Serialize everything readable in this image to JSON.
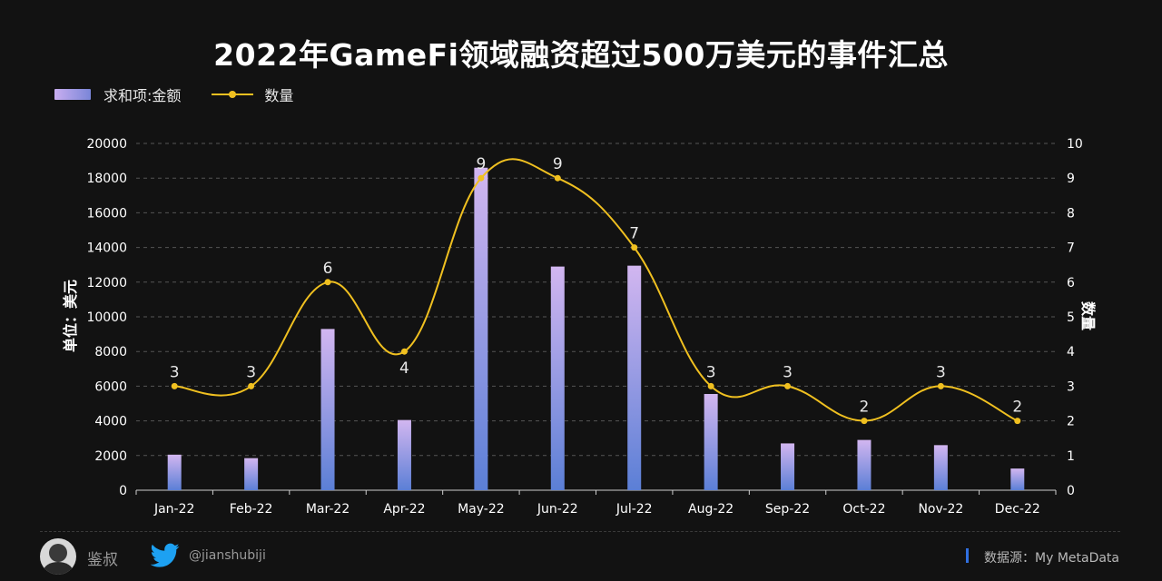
{
  "title": "2022年GameFi领域融资超过500万美元的事件汇总",
  "legend": {
    "bar_label": "求和项:金额",
    "line_label": "数量"
  },
  "footer": {
    "author": "鉴叔",
    "handle": "@jianshubiji",
    "source": "数据源：My MetaData",
    "twitter_icon": "twitter-bird-icon",
    "avatar_icon": "avatar-icon"
  },
  "colors": {
    "background": "#121212",
    "bar_top": "#c9aef0",
    "bar_bottom": "#5b7fd6",
    "line": "#f0c020",
    "grid": "#555555",
    "twitter": "#1da1f2",
    "source_accent": "#2f6fe0"
  },
  "chart_data": {
    "type": "bar",
    "categories": [
      "Jan-22",
      "Feb-22",
      "Mar-22",
      "Apr-22",
      "May-22",
      "Jun-22",
      "Jul-22",
      "Aug-22",
      "Sep-22",
      "Oct-22",
      "Nov-22",
      "Dec-22"
    ],
    "series": [
      {
        "name": "求和项:金额",
        "type": "bar",
        "axis": "left",
        "values": [
          2050,
          1850,
          9300,
          4050,
          18600,
          12900,
          12950,
          5550,
          2700,
          2900,
          2600,
          1250
        ]
      },
      {
        "name": "数量",
        "type": "line",
        "axis": "right",
        "smooth": true,
        "values": [
          3,
          3,
          6,
          4,
          9,
          9,
          7,
          3,
          3,
          2,
          3,
          2
        ]
      }
    ],
    "ylabel": "单位：美元",
    "y2label": "数量",
    "ylim": [
      0,
      20000
    ],
    "y2lim": [
      0,
      10
    ],
    "yticks": [
      0,
      2000,
      4000,
      6000,
      8000,
      10000,
      12000,
      14000,
      16000,
      18000,
      20000
    ],
    "y2ticks": [
      0,
      1,
      2,
      3,
      4,
      5,
      6,
      7,
      8,
      9,
      10
    ],
    "grid": true,
    "legend_position": "top-left"
  }
}
